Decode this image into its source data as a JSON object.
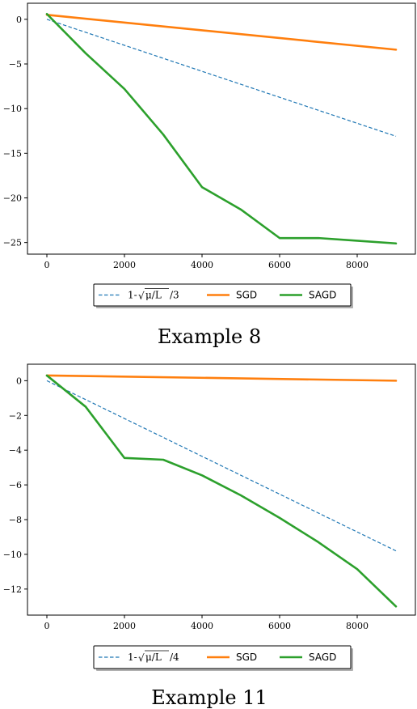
{
  "chart_data": [
    {
      "type": "line",
      "caption": "Example 8",
      "xlim": [
        -500,
        9500
      ],
      "ylim": [
        -26.3,
        1.8
      ],
      "xticks": [
        0,
        2000,
        4000,
        6000,
        8000
      ],
      "yticks": [
        0,
        -5,
        -10,
        -15,
        -20,
        -25
      ],
      "xtick_labels": [
        "0",
        "2000",
        "4000",
        "6000",
        "8000"
      ],
      "ytick_labels": [
        "0",
        "−5",
        "−10",
        "−15",
        "−20",
        "−25"
      ],
      "legend_placement": "below",
      "series": [
        {
          "name": "1-√μ/L/3",
          "legend_prefix": "1-",
          "legend_radicand": "μ/L",
          "legend_suffix": "/3",
          "style": "dashed",
          "color": "#1f77b4",
          "x": [
            0,
            9000
          ],
          "y": [
            0,
            -13.1
          ]
        },
        {
          "name": "SGD",
          "style": "solid",
          "color": "#ff7f0e",
          "x": [
            0,
            9000
          ],
          "y": [
            0.5,
            -3.4
          ]
        },
        {
          "name": "SAGD",
          "style": "solid",
          "color": "#2ca02c",
          "x": [
            0,
            1000,
            2000,
            3000,
            4000,
            5000,
            6000,
            7000,
            8000,
            9000
          ],
          "y": [
            0.6,
            -3.8,
            -7.8,
            -12.9,
            -18.8,
            -21.3,
            -24.5,
            -24.5,
            -24.8,
            -25.1
          ]
        }
      ]
    },
    {
      "type": "line",
      "caption": "Example 11",
      "xlim": [
        -500,
        9500
      ],
      "ylim": [
        -13.5,
        0.95
      ],
      "xticks": [
        0,
        2000,
        4000,
        6000,
        8000
      ],
      "yticks": [
        0,
        -2,
        -4,
        -6,
        -8,
        -10,
        -12
      ],
      "xtick_labels": [
        "0",
        "2000",
        "4000",
        "6000",
        "8000"
      ],
      "ytick_labels": [
        "0",
        "−2",
        "−4",
        "−6",
        "−8",
        "−10",
        "−12"
      ],
      "legend_placement": "below",
      "series": [
        {
          "name": "1-√μ/L/4",
          "legend_prefix": "1-",
          "legend_radicand": "μ/L",
          "legend_suffix": "/4",
          "style": "dashed",
          "color": "#1f77b4",
          "x": [
            0,
            9000
          ],
          "y": [
            0,
            -9.8
          ]
        },
        {
          "name": "SGD",
          "style": "solid",
          "color": "#ff7f0e",
          "x": [
            0,
            9000
          ],
          "y": [
            0.3,
            0
          ]
        },
        {
          "name": "SAGD",
          "style": "solid",
          "color": "#2ca02c",
          "x": [
            0,
            1000,
            2000,
            3000,
            4000,
            5000,
            6000,
            7000,
            8000,
            9000
          ],
          "y": [
            0.3,
            -1.5,
            -4.45,
            -4.55,
            -5.45,
            -6.6,
            -7.9,
            -9.3,
            -10.85,
            -13.0
          ]
        }
      ]
    }
  ]
}
